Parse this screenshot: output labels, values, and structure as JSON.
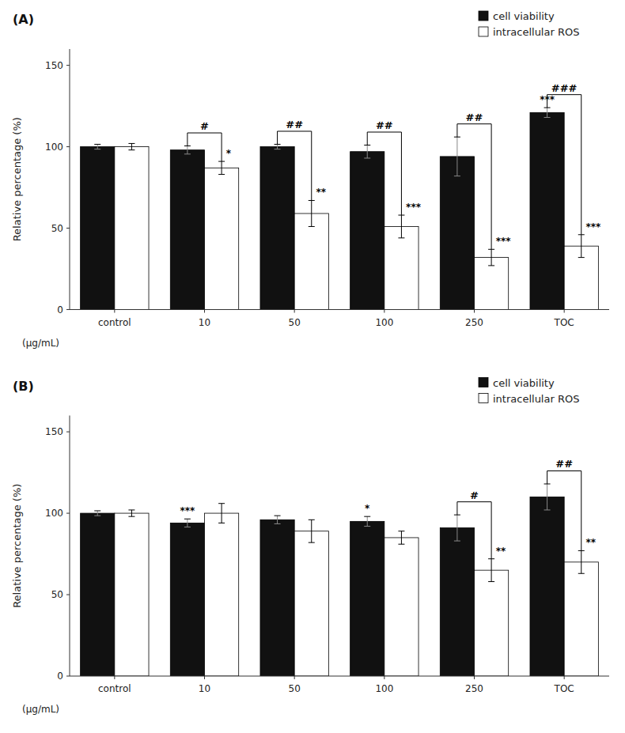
{
  "chart_data": [
    {
      "type": "bar",
      "title": "(A)",
      "ylabel": "Relative percentage (%)",
      "xlabel": "(μg/mL)",
      "categories": [
        "control",
        "10",
        "50",
        "100",
        "250",
        "TOC"
      ],
      "series": [
        {
          "name": "cell viability",
          "color": "#111111",
          "values": [
            100,
            98,
            100,
            97,
            94,
            121
          ],
          "errors": [
            1.5,
            2.5,
            1.5,
            4,
            12,
            3
          ]
        },
        {
          "name": "intracellular ROS",
          "color": "#ffffff",
          "values": [
            100,
            87,
            59,
            51,
            32,
            39
          ],
          "errors": [
            2,
            4,
            8,
            7,
            5,
            7
          ]
        }
      ],
      "annotations": [
        {
          "text": "***",
          "series": "cell viability",
          "category": "TOC"
        },
        {
          "text": "*",
          "series": "intracellular ROS",
          "category": "10"
        },
        {
          "text": "**",
          "series": "intracellular ROS",
          "category": "50"
        },
        {
          "text": "***",
          "series": "intracellular ROS",
          "category": "100"
        },
        {
          "text": "***",
          "series": "intracellular ROS",
          "category": "250"
        },
        {
          "text": "***",
          "series": "intracellular ROS",
          "category": "TOC"
        },
        {
          "text": "#",
          "category": "10"
        },
        {
          "text": "##",
          "category": "50"
        },
        {
          "text": "##",
          "category": "100"
        },
        {
          "text": "##",
          "category": "250"
        },
        {
          "text": "###",
          "category": "TOC"
        }
      ],
      "ylim": [
        0,
        160
      ],
      "yticks": [
        0,
        50,
        100,
        150
      ],
      "grid": false,
      "legend": "upper right"
    },
    {
      "type": "bar",
      "title": "(B)",
      "ylabel": "Relative percentage (%)",
      "xlabel": "(μg/mL)",
      "categories": [
        "control",
        "10",
        "50",
        "100",
        "250",
        "TOC"
      ],
      "series": [
        {
          "name": "cell viability",
          "color": "#111111",
          "values": [
            100,
            94,
            96,
            95,
            91,
            110
          ],
          "errors": [
            1.5,
            2.5,
            2.5,
            3,
            8,
            8
          ]
        },
        {
          "name": "intracellular ROS",
          "color": "#ffffff",
          "values": [
            100,
            100,
            89,
            85,
            65,
            70
          ],
          "errors": [
            2,
            6,
            7,
            4,
            7,
            7
          ]
        }
      ],
      "annotations": [
        {
          "text": "***",
          "series": "cell viability",
          "category": "10"
        },
        {
          "text": "*",
          "series": "cell viability",
          "category": "100"
        },
        {
          "text": "**",
          "series": "intracellular ROS",
          "category": "250"
        },
        {
          "text": "**",
          "series": "intracellular ROS",
          "category": "TOC"
        },
        {
          "text": "#",
          "category": "250"
        },
        {
          "text": "##",
          "category": "TOC"
        }
      ],
      "ylim": [
        0,
        160
      ],
      "yticks": [
        0,
        50,
        100,
        150
      ],
      "grid": false,
      "legend": "upper right"
    }
  ]
}
